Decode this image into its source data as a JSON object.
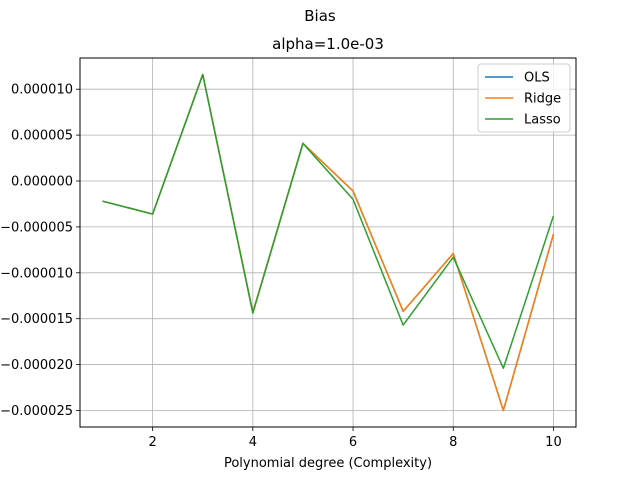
{
  "chart_data": {
    "type": "line",
    "suptitle": "Bias",
    "title": "alpha=1.0e-03",
    "xlabel": "Polynomial degree (Complexity)",
    "ylabel": "",
    "xlim": [
      0.55,
      10.45
    ],
    "ylim": [
      -2.68e-05,
      1.34e-05
    ],
    "xticks": [
      2,
      4,
      6,
      8,
      10
    ],
    "xtick_labels": [
      "2",
      "4",
      "6",
      "8",
      "10"
    ],
    "yticks": [
      -2.5e-05,
      -2e-05,
      -1.5e-05,
      -1e-05,
      -5e-06,
      0,
      5e-06,
      1e-05
    ],
    "ytick_labels": [
      "−0.000025",
      "−0.000020",
      "−0.000015",
      "−0.000010",
      "−0.000005",
      "0.000000",
      "0.000005",
      "0.000010"
    ],
    "grid": true,
    "legend_position": "top-right",
    "x": [
      1,
      2,
      3,
      4,
      5,
      6,
      7,
      8,
      9,
      10
    ],
    "series": [
      {
        "name": "OLS",
        "color": "#1f77b4",
        "values": [
          -2.2e-06,
          -3.6e-06,
          1.16e-05,
          -1.43e-05,
          4.1e-06,
          -1.1e-06,
          -1.42e-05,
          -7.9e-06,
          -2.5e-05,
          -5.8e-06
        ]
      },
      {
        "name": "Ridge",
        "color": "#ff7f0e",
        "values": [
          -2.2e-06,
          -3.6e-06,
          1.16e-05,
          -1.43e-05,
          4.1e-06,
          -1.1e-06,
          -1.42e-05,
          -7.9e-06,
          -2.5e-05,
          -5.8e-06
        ]
      },
      {
        "name": "Lasso",
        "color": "#2ca02c",
        "values": [
          -2.2e-06,
          -3.6e-06,
          1.16e-05,
          -1.44e-05,
          4.1e-06,
          -2e-06,
          -1.57e-05,
          -8.3e-06,
          -2.04e-05,
          -3.8e-06
        ]
      }
    ]
  }
}
